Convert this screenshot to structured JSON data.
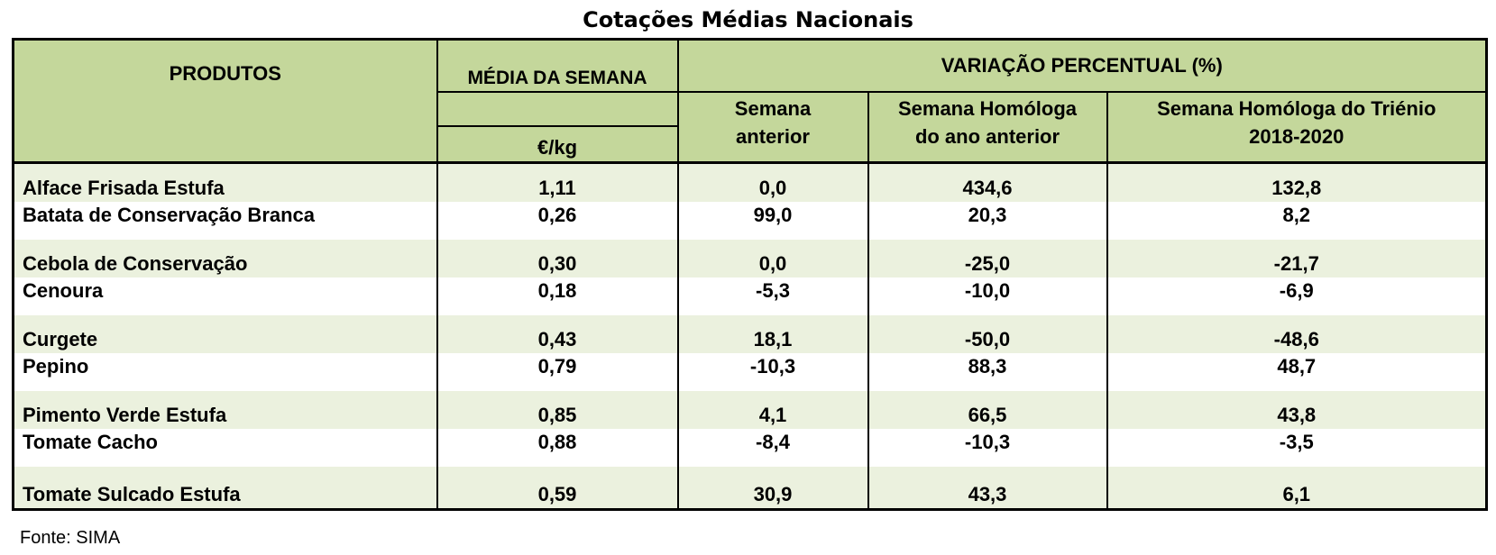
{
  "title": "Cotações Médias Nacionais",
  "header": {
    "produtos": "PRODUTOS",
    "media_semana": "MÉDIA DA SEMANA",
    "unit": "€/kg",
    "variacao": "VARIAÇÃO PERCENTUAL (%)",
    "sub_cols": [
      "Semana\nanterior",
      "Semana Homóloga\ndo ano anterior",
      "Semana Homóloga do Triénio\n2018-2020"
    ]
  },
  "rows": [
    {
      "produto": "Alface Frisada Estufa",
      "media": "1,11",
      "semana_anterior": "0,0",
      "ano_anterior": "434,6",
      "trienio": "132,8"
    },
    {
      "produto": "Batata de Conservação Branca",
      "media": "0,26",
      "semana_anterior": "99,0",
      "ano_anterior": "20,3",
      "trienio": "8,2"
    },
    {
      "produto": "Cebola de Conservação",
      "media": "0,30",
      "semana_anterior": "0,0",
      "ano_anterior": "-25,0",
      "trienio": "-21,7"
    },
    {
      "produto": "Cenoura",
      "media": "0,18",
      "semana_anterior": "-5,3",
      "ano_anterior": "-10,0",
      "trienio": "-6,9"
    },
    {
      "produto": "Curgete",
      "media": "0,43",
      "semana_anterior": "18,1",
      "ano_anterior": "-50,0",
      "trienio": "-48,6"
    },
    {
      "produto": "Pepino",
      "media": "0,79",
      "semana_anterior": "-10,3",
      "ano_anterior": "88,3",
      "trienio": "48,7"
    },
    {
      "produto": "Pimento Verde Estufa",
      "media": "0,85",
      "semana_anterior": "4,1",
      "ano_anterior": "66,5",
      "trienio": "43,8"
    },
    {
      "produto": "Tomate Cacho",
      "media": "0,88",
      "semana_anterior": "-8,4",
      "ano_anterior": "-10,3",
      "trienio": "-3,5"
    },
    {
      "produto": "Tomate Sulcado Estufa",
      "media": "0,59",
      "semana_anterior": "30,9",
      "ano_anterior": "43,3",
      "trienio": "6,1"
    }
  ],
  "source": "Fonte: SIMA",
  "colors": {
    "header_bg": "#c4d79b",
    "band_bg": "#ebf1de"
  }
}
